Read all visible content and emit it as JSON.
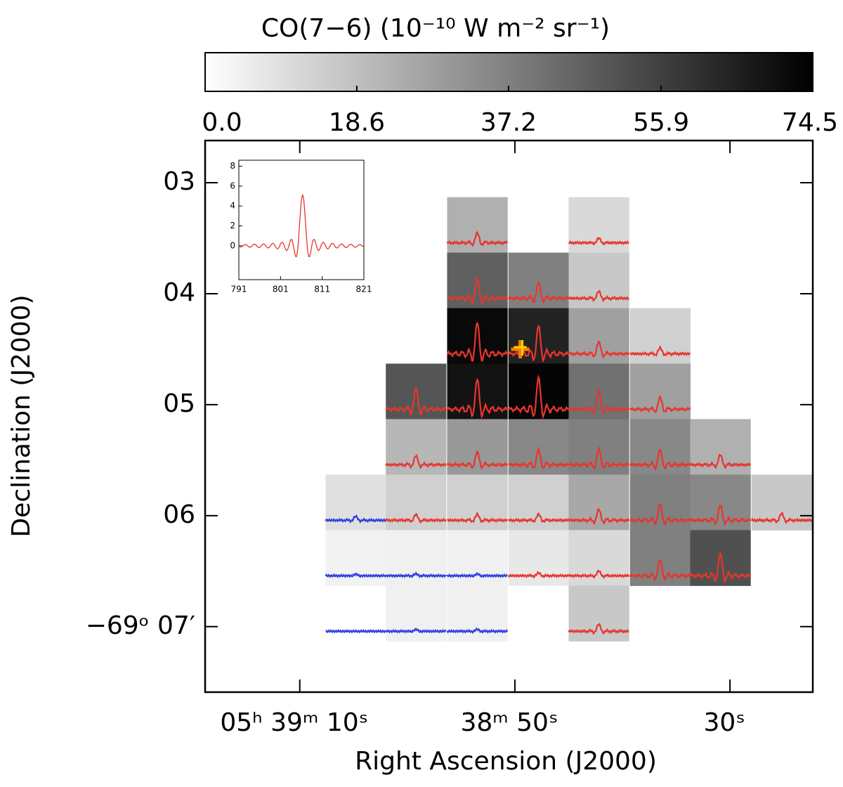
{
  "chart_data": {
    "type": "map",
    "title": "CO(7−6) (10⁻¹⁰ W m⁻² sr⁻¹)",
    "xlabel": "Right Ascension (J2000)",
    "ylabel": "Declination (J2000)",
    "clim": [
      0,
      74.5
    ],
    "cticks": [
      {
        "value": 0,
        "label": "0.0"
      },
      18.6,
      37.2,
      55.9,
      74.5
    ],
    "xlim": [
      78.8,
      22.3
    ],
    "xticks": [
      {
        "value": 70,
        "label": "05ʰ 39ᵐ 10ˢ"
      },
      {
        "value": 50,
        "label": "38ᵐ 50ˢ"
      },
      {
        "value": 30,
        "label": "30ˢ"
      }
    ],
    "ylim": [
      7.59,
      2.62
    ],
    "yticks": [
      {
        "value": 3,
        "label": "03"
      },
      {
        "value": 4,
        "label": "04"
      },
      {
        "value": 5,
        "label": "05"
      },
      {
        "value": 6,
        "label": "06"
      },
      {
        "value": 7,
        "label": "−69ᵒ 07′"
      }
    ],
    "cell_x": [
      64.8,
      59.2,
      53.5,
      47.8,
      42.2,
      36.5,
      30.9,
      25.2
    ],
    "cell_y": [
      3.38,
      3.88,
      4.38,
      4.88,
      5.38,
      5.88,
      6.38,
      6.88
    ],
    "cells": [
      [
        null,
        null,
        23,
        null,
        11,
        null,
        null,
        null
      ],
      [
        null,
        null,
        46.5,
        37,
        16,
        null,
        null,
        null
      ],
      [
        null,
        null,
        72,
        64.6,
        27.7,
        13.7,
        null,
        null
      ],
      [
        null,
        49.7,
        69,
        73,
        41.6,
        27.7,
        null,
        null
      ],
      [
        null,
        21,
        29.8,
        34.8,
        37,
        34.8,
        23,
        null
      ],
      [
        9,
        13.7,
        13.7,
        13.7,
        25.4,
        37,
        34.8,
        16
      ],
      [
        3.8,
        4.4,
        4.4,
        6.7,
        11,
        37,
        51,
        null
      ],
      [
        null,
        4.4,
        4.4,
        null,
        16,
        null,
        null,
        null
      ]
    ],
    "spectra": [
      [
        null,
        null,
        "#e8352d",
        null,
        "#e8352d",
        null,
        null,
        null
      ],
      [
        null,
        null,
        "#e8352d",
        "#e8352d",
        "#e8352d",
        null,
        null,
        null
      ],
      [
        null,
        null,
        "#e8352d",
        "#e8352d",
        "#e8352d",
        "#e8352d",
        null,
        null
      ],
      [
        null,
        "#e8352d",
        "#e8352d",
        "#e8352d",
        "#e8352d",
        "#e8352d",
        null,
        null
      ],
      [
        null,
        "#e8352d",
        "#e8352d",
        "#e8352d",
        "#e8352d",
        "#e8352d",
        "#e8352d",
        null
      ],
      [
        "#2f3fe0",
        "#e8352d",
        "#e8352d",
        "#e8352d",
        "#e8352d",
        "#e8352d",
        "#e8352d",
        "#e8352d"
      ],
      [
        "#2f3fe0",
        "#2f3fe0",
        "#2f3fe0",
        "#e8352d",
        "#e8352d",
        "#e8352d",
        "#e8352d",
        null
      ],
      [
        "#2f3fe0",
        "#2f3fe0",
        "#2f3fe0",
        null,
        "#e8352d",
        null,
        null,
        null
      ]
    ],
    "marker": {
      "x": 49.5,
      "y": 4.5
    },
    "inset": {
      "xlim": [
        791,
        821
      ],
      "ylim": [
        -3.4,
        8.6
      ],
      "xticks": [
        791,
        801,
        811,
        821
      ],
      "yticks": [
        0,
        2,
        4,
        6,
        8
      ],
      "peak": 5.1,
      "center": 806.3,
      "color": "#e8352d"
    }
  }
}
